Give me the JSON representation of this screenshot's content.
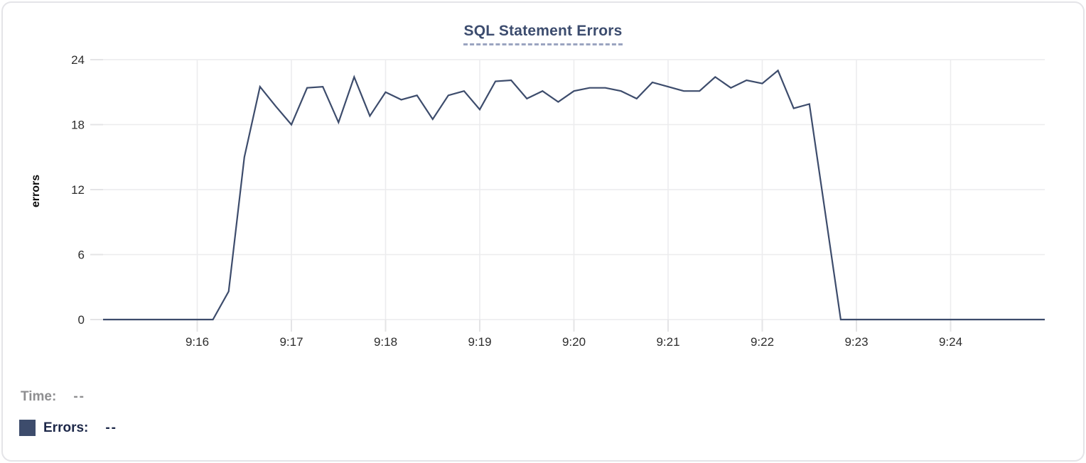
{
  "legend": {
    "time_label": "Time:",
    "time_value": "--",
    "series_label": "Errors:",
    "series_value": "--"
  },
  "colors": {
    "line": "#3d4c6c",
    "title": "#3c4c6e",
    "grid": "#ececee",
    "tick_mark": "#e4e4e6",
    "tick_text": "#2d2d2d",
    "time_label": "#8e8e90",
    "errors_label": "#1d2849",
    "legend_swatch": "#3d4c6c"
  },
  "chart_data": {
    "type": "line",
    "title": "SQL Statement Errors",
    "xlabel": "",
    "ylabel": "errors",
    "ylim": [
      0,
      24
    ],
    "y_ticks": [
      0,
      6,
      12,
      18,
      24
    ],
    "x_ticks": [
      "9:16",
      "9:17",
      "9:18",
      "9:19",
      "9:20",
      "9:21",
      "9:22",
      "9:23",
      "9:24"
    ],
    "x_range": [
      "9:15:00",
      "9:25:00"
    ],
    "grid": true,
    "legend_position": "bottom-left",
    "series": [
      {
        "name": "Errors",
        "color": "#3d4c6c",
        "start_time": "9:15:00",
        "interval_seconds": 10,
        "values": [
          0,
          0,
          0,
          0,
          0,
          0,
          0,
          0,
          2.6,
          15,
          21.5,
          19.7,
          18,
          21.4,
          21.5,
          18.2,
          22.4,
          18.8,
          21,
          20.3,
          20.7,
          18.5,
          20.7,
          21.1,
          19.4,
          22,
          22.1,
          20.4,
          21.1,
          20.1,
          21.1,
          21.4,
          21.4,
          21.1,
          20.4,
          21.9,
          21.5,
          21.1,
          21.1,
          22.4,
          21.4,
          22.1,
          21.8,
          23,
          19.5,
          19.9,
          10,
          0,
          0,
          0,
          0,
          0,
          0,
          0,
          0,
          0,
          0,
          0,
          0,
          0,
          0
        ]
      }
    ]
  }
}
